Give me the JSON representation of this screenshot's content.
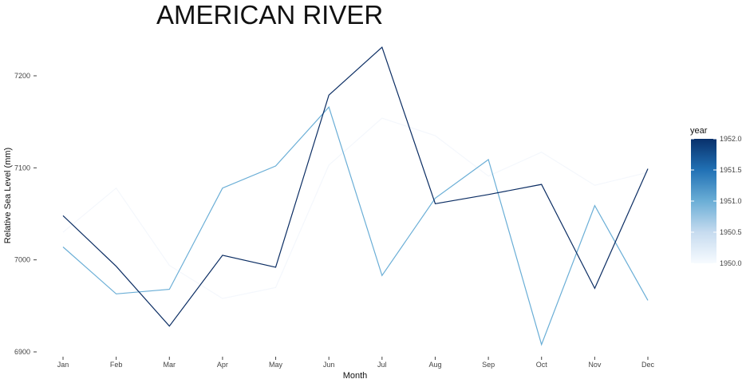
{
  "chart_data": {
    "type": "line",
    "title": "AMERICAN RIVER",
    "xlabel": "Month",
    "ylabel": "Relative Sea Level (mm)",
    "categories": [
      "Jan",
      "Feb",
      "Mar",
      "Apr",
      "May",
      "Jun",
      "Jul",
      "Aug",
      "Sep",
      "Oct",
      "Nov",
      "Dec"
    ],
    "ylim": [
      6895,
      7232
    ],
    "yticks": [
      6900,
      7000,
      7100,
      7200
    ],
    "grid": false,
    "series": [
      {
        "name": "1950",
        "color": "#f4f7fc",
        "values": [
          7030,
          7078,
          6994,
          6958,
          6970,
          7103,
          7154,
          7135,
          7091,
          7117,
          7081,
          7095
        ]
      },
      {
        "name": "1951",
        "color": "#6aaed6",
        "values": [
          7014,
          6963,
          6968,
          7078,
          7102,
          7166,
          6983,
          7067,
          7109,
          6908,
          7059,
          6956
        ]
      },
      {
        "name": "1952",
        "color": "#0b2d63",
        "values": [
          7048,
          6993,
          6928,
          7005,
          6992,
          7179,
          7231,
          7061,
          7071,
          7082,
          6969,
          7099
        ]
      }
    ],
    "legend": {
      "title": "year",
      "position": "right",
      "ticks": [
        "1950.0",
        "1950.5",
        "1951.0",
        "1951.5",
        "1952.0"
      ],
      "colors": [
        "#f7fbff",
        "#c6dbef",
        "#6baed6",
        "#2171b5",
        "#08306b"
      ]
    }
  }
}
